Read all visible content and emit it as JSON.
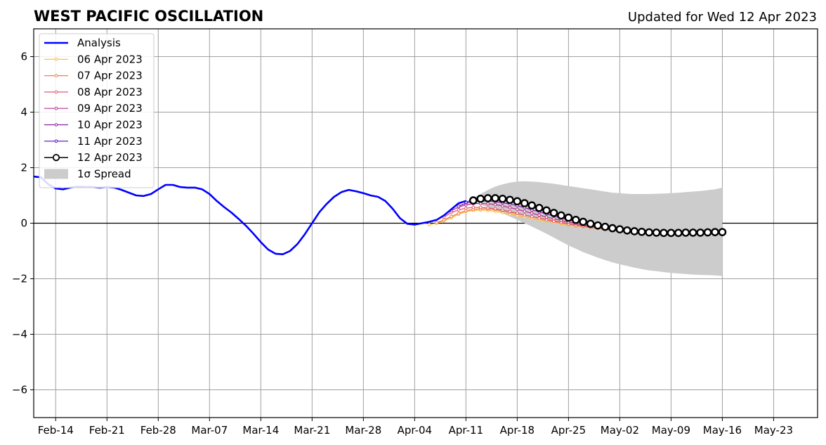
{
  "header": {
    "title": "WEST PACIFIC OSCILLATION",
    "updated": "Updated for Wed 12 Apr 2023"
  },
  "chart_data": {
    "type": "line",
    "title": "WEST PACIFIC OSCILLATION",
    "subtitle": "Updated for Wed 12 Apr 2023",
    "xlabel": "",
    "ylabel": "",
    "x_axis_type": "date",
    "xlim": [
      "2023-02-11",
      "2023-05-29"
    ],
    "ylim": [
      -7,
      7
    ],
    "x_ticks": [
      "2023-02-14",
      "2023-02-21",
      "2023-02-28",
      "2023-03-07",
      "2023-03-14",
      "2023-03-21",
      "2023-03-28",
      "2023-04-04",
      "2023-04-11",
      "2023-04-18",
      "2023-04-25",
      "2023-05-02",
      "2023-05-09",
      "2023-05-16",
      "2023-05-23"
    ],
    "x_tick_labels": [
      "Feb-14",
      "Feb-21",
      "Feb-28",
      "Mar-07",
      "Mar-14",
      "Mar-21",
      "Mar-28",
      "Apr-04",
      "Apr-11",
      "Apr-18",
      "Apr-25",
      "May-02",
      "May-09",
      "May-16",
      "May-23"
    ],
    "y_ticks": [
      -6,
      -4,
      -2,
      0,
      2,
      4,
      6
    ],
    "y_tick_labels": [
      "−6",
      "−4",
      "−2",
      "0",
      "2",
      "4",
      "6"
    ],
    "grid": true,
    "legend_position": "upper-left",
    "analysis": {
      "name": "Analysis",
      "color": "#0000ff",
      "start": "2023-02-11",
      "values": [
        1.68,
        1.65,
        1.4,
        1.25,
        1.22,
        1.28,
        1.32,
        1.3,
        1.3,
        1.28,
        1.3,
        1.28,
        1.2,
        1.1,
        1.0,
        0.98,
        1.05,
        1.22,
        1.38,
        1.38,
        1.3,
        1.28,
        1.28,
        1.22,
        1.05,
        0.8,
        0.58,
        0.38,
        0.15,
        -0.1,
        -0.38,
        -0.68,
        -0.95,
        -1.1,
        -1.12,
        -1.0,
        -0.75,
        -0.4,
        0.0,
        0.4,
        0.7,
        0.95,
        1.12,
        1.2,
        1.15,
        1.08,
        1.0,
        0.95,
        0.8,
        0.52,
        0.18,
        -0.02,
        -0.05,
        0.0,
        0.05,
        0.12,
        0.28,
        0.5,
        0.72,
        0.8
      ]
    },
    "forecasts": [
      {
        "name": "06 Apr 2023",
        "color": "#ffb833",
        "start": "2023-04-06",
        "values": [
          -0.05,
          0.0,
          0.08,
          0.2,
          0.32,
          0.42,
          0.46,
          0.47,
          0.46,
          0.43,
          0.38,
          0.33,
          0.28,
          0.23,
          0.18,
          0.13,
          0.08,
          0.03,
          -0.02,
          -0.06,
          -0.1,
          -0.13,
          -0.16,
          -0.19,
          -0.21,
          -0.23,
          -0.24,
          -0.25,
          -0.26,
          -0.27,
          -0.27,
          -0.28,
          -0.28,
          -0.28,
          -0.28
        ]
      },
      {
        "name": "07 Apr 2023",
        "color": "#f07f4a",
        "start": "2023-04-07",
        "values": [
          0.02,
          0.12,
          0.24,
          0.36,
          0.45,
          0.5,
          0.52,
          0.51,
          0.49,
          0.45,
          0.4,
          0.35,
          0.3,
          0.24,
          0.19,
          0.14,
          0.09,
          0.04,
          -0.01,
          -0.05,
          -0.09,
          -0.13,
          -0.16,
          -0.19,
          -0.21,
          -0.23,
          -0.25,
          -0.26,
          -0.27,
          -0.28,
          -0.28,
          -0.29,
          -0.29,
          -0.29,
          -0.29
        ]
      },
      {
        "name": "08 Apr 2023",
        "color": "#e35a6f",
        "start": "2023-04-08",
        "values": [
          0.22,
          0.38,
          0.48,
          0.54,
          0.57,
          0.57,
          0.55,
          0.52,
          0.47,
          0.42,
          0.36,
          0.3,
          0.24,
          0.18,
          0.12,
          0.07,
          0.02,
          -0.03,
          -0.07,
          -0.11,
          -0.15,
          -0.18,
          -0.21,
          -0.23,
          -0.25,
          -0.27,
          -0.28,
          -0.29,
          -0.3,
          -0.3,
          -0.31,
          -0.31,
          -0.31,
          -0.31,
          -0.31
        ]
      },
      {
        "name": "09 Apr 2023",
        "color": "#b8348f",
        "start": "2023-04-09",
        "values": [
          0.45,
          0.58,
          0.66,
          0.7,
          0.71,
          0.7,
          0.67,
          0.62,
          0.56,
          0.5,
          0.43,
          0.36,
          0.29,
          0.22,
          0.16,
          0.1,
          0.04,
          -0.01,
          -0.06,
          -0.11,
          -0.15,
          -0.19,
          -0.22,
          -0.25,
          -0.27,
          -0.29,
          -0.3,
          -0.31,
          -0.32,
          -0.32,
          -0.33,
          -0.33,
          -0.33,
          -0.33,
          -0.33
        ]
      },
      {
        "name": "10 Apr 2023",
        "color": "#8a22a8",
        "start": "2023-04-10",
        "values": [
          0.62,
          0.72,
          0.78,
          0.8,
          0.8,
          0.78,
          0.74,
          0.69,
          0.63,
          0.56,
          0.48,
          0.41,
          0.33,
          0.26,
          0.19,
          0.12,
          0.06,
          0.0,
          -0.05,
          -0.1,
          -0.15,
          -0.19,
          -0.23,
          -0.26,
          -0.28,
          -0.3,
          -0.32,
          -0.33,
          -0.34,
          -0.34,
          -0.35,
          -0.35,
          -0.35,
          -0.35,
          -0.35
        ]
      },
      {
        "name": "11 Apr 2023",
        "color": "#4a0fb0",
        "start": "2023-04-11",
        "values": [
          0.76,
          0.84,
          0.88,
          0.9,
          0.89,
          0.86,
          0.82,
          0.76,
          0.7,
          0.62,
          0.54,
          0.46,
          0.38,
          0.3,
          0.22,
          0.15,
          0.08,
          0.02,
          -0.04,
          -0.09,
          -0.14,
          -0.19,
          -0.23,
          -0.26,
          -0.29,
          -0.31,
          -0.33,
          -0.34,
          -0.35,
          -0.36,
          -0.36,
          -0.37,
          -0.37,
          -0.37,
          -0.37
        ]
      },
      {
        "name": "12 Apr 2023",
        "color": "#000000",
        "start": "2023-04-12",
        "values": [
          0.82,
          0.88,
          0.9,
          0.9,
          0.88,
          0.84,
          0.79,
          0.72,
          0.64,
          0.55,
          0.46,
          0.37,
          0.28,
          0.2,
          0.12,
          0.05,
          -0.02,
          -0.08,
          -0.13,
          -0.18,
          -0.22,
          -0.26,
          -0.29,
          -0.31,
          -0.33,
          -0.34,
          -0.35,
          -0.35,
          -0.35,
          -0.34,
          -0.34,
          -0.34,
          -0.33,
          -0.32,
          -0.32
        ]
      }
    ],
    "spread": {
      "name": "1σ Spread",
      "color": "#cccccc",
      "start": "2023-04-12",
      "upper": [
        0.9,
        1.05,
        1.2,
        1.32,
        1.4,
        1.46,
        1.5,
        1.51,
        1.5,
        1.48,
        1.45,
        1.42,
        1.38,
        1.34,
        1.3,
        1.26,
        1.22,
        1.18,
        1.14,
        1.1,
        1.08,
        1.06,
        1.05,
        1.05,
        1.05,
        1.06,
        1.07,
        1.08,
        1.1,
        1.12,
        1.14,
        1.16,
        1.19,
        1.22,
        1.28
      ],
      "lower": [
        0.74,
        0.66,
        0.58,
        0.48,
        0.36,
        0.24,
        0.12,
        0.0,
        -0.12,
        -0.25,
        -0.38,
        -0.52,
        -0.66,
        -0.8,
        -0.92,
        -1.04,
        -1.14,
        -1.24,
        -1.33,
        -1.41,
        -1.48,
        -1.54,
        -1.6,
        -1.65,
        -1.7,
        -1.73,
        -1.76,
        -1.79,
        -1.81,
        -1.83,
        -1.85,
        -1.86,
        -1.87,
        -1.88,
        -1.9
      ]
    }
  }
}
